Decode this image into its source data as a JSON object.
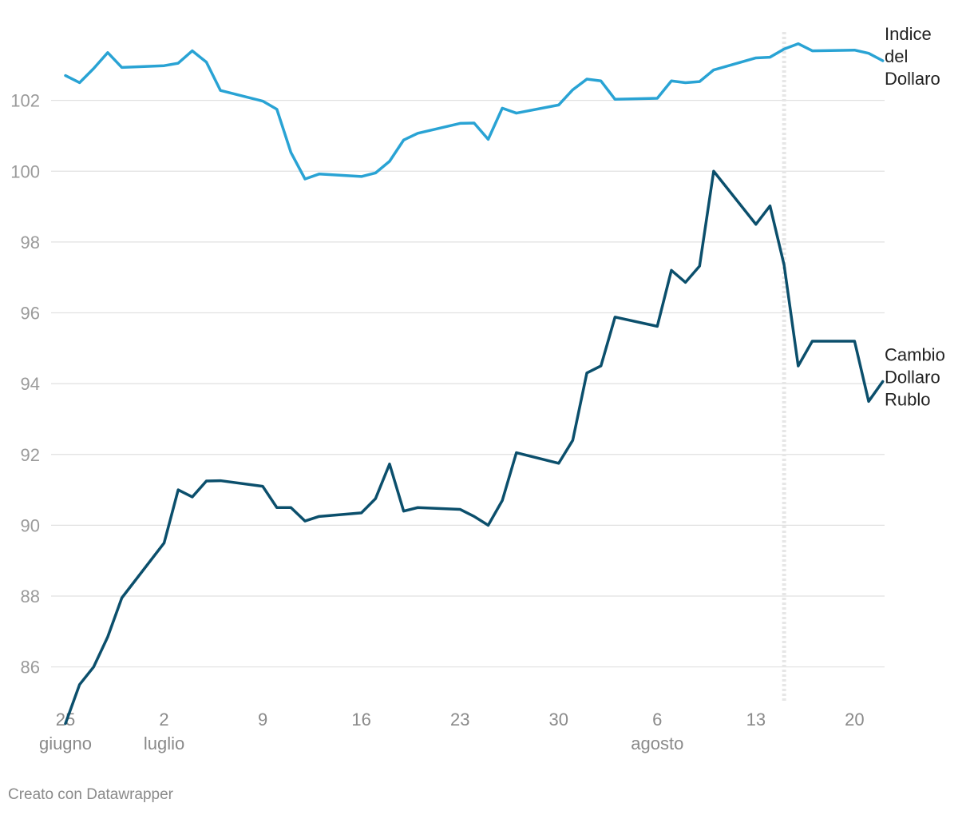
{
  "chart_data": {
    "type": "line",
    "x_axis": {
      "type": "date",
      "start": "2023-06-25",
      "end": "2023-08-22",
      "ticks": [
        {
          "date": "2023-06-25",
          "label": "25",
          "sublabel": "giugno"
        },
        {
          "date": "2023-07-02",
          "label": "2",
          "sublabel": "luglio"
        },
        {
          "date": "2023-07-09",
          "label": "9",
          "sublabel": ""
        },
        {
          "date": "2023-07-16",
          "label": "16",
          "sublabel": ""
        },
        {
          "date": "2023-07-23",
          "label": "23",
          "sublabel": ""
        },
        {
          "date": "2023-07-30",
          "label": "30",
          "sublabel": ""
        },
        {
          "date": "2023-08-06",
          "label": "6",
          "sublabel": "agosto"
        },
        {
          "date": "2023-08-13",
          "label": "13",
          "sublabel": ""
        },
        {
          "date": "2023-08-20",
          "label": "20",
          "sublabel": ""
        }
      ]
    },
    "y_axis": {
      "ylim": [
        84.3,
        104
      ],
      "ticks": [
        86,
        88,
        90,
        92,
        94,
        96,
        98,
        100,
        102
      ],
      "grid": true
    },
    "reference_line": {
      "date": "2023-08-15",
      "style": "dotted"
    },
    "series": [
      {
        "name": "Indice del Dollaro",
        "label_lines": [
          "Indice",
          "del",
          "Dollaro"
        ],
        "color": "#29a3d4",
        "points": [
          [
            "2023-06-25",
            102.7
          ],
          [
            "2023-06-26",
            102.5
          ],
          [
            "2023-06-27",
            102.9
          ],
          [
            "2023-06-28",
            103.35
          ],
          [
            "2023-06-29",
            102.93
          ],
          [
            "2023-07-02",
            102.98
          ],
          [
            "2023-07-03",
            103.05
          ],
          [
            "2023-07-04",
            103.4
          ],
          [
            "2023-07-05",
            103.08
          ],
          [
            "2023-07-06",
            102.28
          ],
          [
            "2023-07-09",
            101.98
          ],
          [
            "2023-07-10",
            101.75
          ],
          [
            "2023-07-11",
            100.53
          ],
          [
            "2023-07-12",
            99.78
          ],
          [
            "2023-07-13",
            99.92
          ],
          [
            "2023-07-16",
            99.85
          ],
          [
            "2023-07-17",
            99.95
          ],
          [
            "2023-07-18",
            100.28
          ],
          [
            "2023-07-19",
            100.88
          ],
          [
            "2023-07-20",
            101.07
          ],
          [
            "2023-07-23",
            101.35
          ],
          [
            "2023-07-24",
            101.36
          ],
          [
            "2023-07-25",
            100.9
          ],
          [
            "2023-07-26",
            101.78
          ],
          [
            "2023-07-27",
            101.64
          ],
          [
            "2023-07-30",
            101.87
          ],
          [
            "2023-07-31",
            102.3
          ],
          [
            "2023-08-01",
            102.6
          ],
          [
            "2023-08-02",
            102.55
          ],
          [
            "2023-08-03",
            102.03
          ],
          [
            "2023-08-06",
            102.06
          ],
          [
            "2023-08-07",
            102.55
          ],
          [
            "2023-08-08",
            102.5
          ],
          [
            "2023-08-09",
            102.53
          ],
          [
            "2023-08-10",
            102.86
          ],
          [
            "2023-08-13",
            103.2
          ],
          [
            "2023-08-14",
            103.22
          ],
          [
            "2023-08-15",
            103.45
          ],
          [
            "2023-08-16",
            103.6
          ],
          [
            "2023-08-17",
            103.4
          ],
          [
            "2023-08-20",
            103.42
          ],
          [
            "2023-08-21",
            103.33
          ],
          [
            "2023-08-22",
            103.12
          ]
        ]
      },
      {
        "name": "Cambio Dollaro Rublo",
        "label_lines": [
          "Cambio",
          "Dollaro",
          "Rublo"
        ],
        "color": "#0b4f6c",
        "points": [
          [
            "2023-06-25",
            84.4
          ],
          [
            "2023-06-26",
            85.5
          ],
          [
            "2023-06-27",
            86.0
          ],
          [
            "2023-06-28",
            86.85
          ],
          [
            "2023-06-29",
            87.95
          ],
          [
            "2023-07-02",
            89.5
          ],
          [
            "2023-07-03",
            91.0
          ],
          [
            "2023-07-04",
            90.8
          ],
          [
            "2023-07-05",
            91.25
          ],
          [
            "2023-07-06",
            91.26
          ],
          [
            "2023-07-09",
            91.1
          ],
          [
            "2023-07-10",
            90.5
          ],
          [
            "2023-07-11",
            90.5
          ],
          [
            "2023-07-12",
            90.12
          ],
          [
            "2023-07-13",
            90.25
          ],
          [
            "2023-07-16",
            90.35
          ],
          [
            "2023-07-17",
            90.75
          ],
          [
            "2023-07-18",
            91.73
          ],
          [
            "2023-07-19",
            90.4
          ],
          [
            "2023-07-20",
            90.5
          ],
          [
            "2023-07-23",
            90.45
          ],
          [
            "2023-07-24",
            90.25
          ],
          [
            "2023-07-25",
            90.0
          ],
          [
            "2023-07-26",
            90.7
          ],
          [
            "2023-07-27",
            92.05
          ],
          [
            "2023-07-30",
            91.75
          ],
          [
            "2023-07-31",
            92.4
          ],
          [
            "2023-08-01",
            94.3
          ],
          [
            "2023-08-02",
            94.5
          ],
          [
            "2023-08-03",
            95.88
          ],
          [
            "2023-08-06",
            95.62
          ],
          [
            "2023-08-07",
            97.2
          ],
          [
            "2023-08-08",
            96.86
          ],
          [
            "2023-08-09",
            97.32
          ],
          [
            "2023-08-10",
            100.0
          ],
          [
            "2023-08-13",
            98.5
          ],
          [
            "2023-08-14",
            99.02
          ],
          [
            "2023-08-15",
            97.35
          ],
          [
            "2023-08-16",
            94.5
          ],
          [
            "2023-08-17",
            95.2
          ],
          [
            "2023-08-20",
            95.2
          ],
          [
            "2023-08-21",
            93.5
          ],
          [
            "2023-08-22",
            94.06
          ]
        ]
      }
    ]
  },
  "footer": {
    "credit": "Creato con Datawrapper"
  }
}
